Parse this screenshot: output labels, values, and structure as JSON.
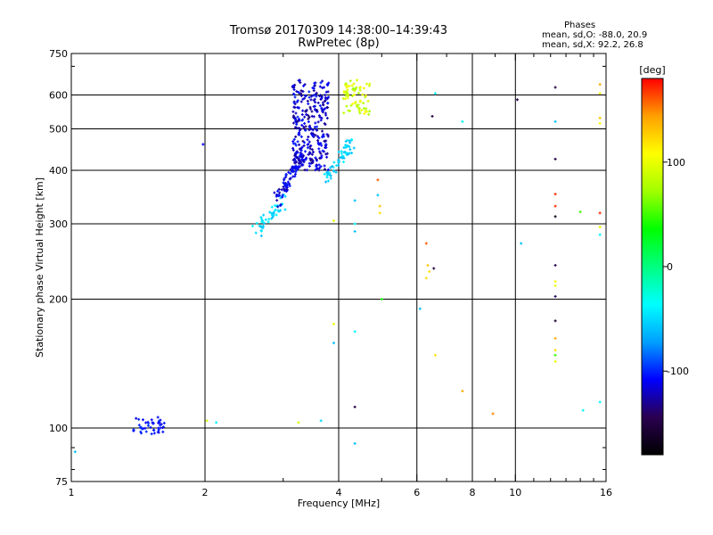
{
  "header": {
    "title_line1": "Tromsø 20170309 14:38:00–14:39:43",
    "title_line2": "RwPretec (8p)",
    "phases_title": "Phases",
    "phases_o": "mean, sd,O: -88.0, 20.9",
    "phases_x": "mean, sd,X:  92.2, 26.8"
  },
  "colors": {
    "background": "#ffffff",
    "axes": "#000000",
    "grid": "#000000"
  },
  "chart_data": {
    "type": "scatter",
    "xlabel": "Frequency [MHz]",
    "ylabel": "Stationary phase Virtual Height [km]",
    "x_scale": "log",
    "y_scale": "log",
    "xlim": [
      1,
      16
    ],
    "ylim": [
      75,
      750
    ],
    "x_ticks": [
      1,
      2,
      4,
      6,
      8,
      10,
      16
    ],
    "y_ticks": [
      75,
      100,
      200,
      300,
      400,
      500,
      600,
      750
    ],
    "grid": true,
    "x_grid": [
      2,
      4,
      6,
      8,
      10
    ],
    "y_grid": [
      100,
      200,
      300,
      400,
      500,
      600
    ],
    "colorbar": {
      "label": "[deg]",
      "min": -180,
      "max": 180,
      "ticks": [
        -100,
        0,
        100
      ],
      "stops": [
        "#000000",
        "#2a0050",
        "#0000ff",
        "#00a0ff",
        "#00ffff",
        "#00ff80",
        "#00ff00",
        "#a0ff00",
        "#ffff00",
        "#ffa000",
        "#ff0000"
      ]
    },
    "clusters": [
      {
        "name": "low",
        "freq": [
          1.38,
          1.62
        ],
        "height": [
          96,
          106
        ],
        "n": 45,
        "phase": [
          -115,
          -95
        ]
      },
      {
        "name": "ramp-low",
        "freq": [
          2.6,
          3.0
        ],
        "height": [
          285,
          340
        ],
        "n": 50,
        "phase": [
          -60,
          -35
        ]
      },
      {
        "name": "ramp-mid",
        "freq": [
          2.9,
          3.3
        ],
        "height": [
          340,
          440
        ],
        "n": 90,
        "phase": [
          -130,
          -100
        ]
      },
      {
        "name": "o-trace",
        "freq": [
          3.15,
          3.8
        ],
        "height": [
          400,
          650
        ],
        "n": 320,
        "phase": [
          -135,
          -100
        ]
      },
      {
        "name": "x-trace-low",
        "freq": [
          3.75,
          4.3
        ],
        "height": [
          380,
          470
        ],
        "n": 60,
        "phase": [
          -65,
          -40
        ]
      },
      {
        "name": "x-trace-upper",
        "freq": [
          4.1,
          4.7
        ],
        "height": [
          540,
          650
        ],
        "n": 70,
        "phase": [
          70,
          110
        ]
      }
    ],
    "points": [
      {
        "x": 1.02,
        "y": 88,
        "p": -60
      },
      {
        "x": 1.98,
        "y": 460,
        "p": -110
      },
      {
        "x": 2.02,
        "y": 104,
        "p": 90
      },
      {
        "x": 2.12,
        "y": 103,
        "p": -40
      },
      {
        "x": 3.25,
        "y": 103,
        "p": 90
      },
      {
        "x": 3.65,
        "y": 104,
        "p": -50
      },
      {
        "x": 3.9,
        "y": 305,
        "p": 100
      },
      {
        "x": 3.9,
        "y": 175,
        "p": 100
      },
      {
        "x": 3.9,
        "y": 158,
        "p": -60
      },
      {
        "x": 4.35,
        "y": 340,
        "p": -60
      },
      {
        "x": 4.35,
        "y": 300,
        "p": -40
      },
      {
        "x": 4.35,
        "y": 288,
        "p": -60
      },
      {
        "x": 4.35,
        "y": 168,
        "p": -40
      },
      {
        "x": 4.35,
        "y": 112,
        "p": -150
      },
      {
        "x": 4.35,
        "y": 92,
        "p": -60
      },
      {
        "x": 4.9,
        "y": 380,
        "p": 160
      },
      {
        "x": 4.9,
        "y": 350,
        "p": -60
      },
      {
        "x": 4.95,
        "y": 330,
        "p": 130
      },
      {
        "x": 4.95,
        "y": 318,
        "p": 120
      },
      {
        "x": 5.0,
        "y": 200,
        "p": 40
      },
      {
        "x": 6.1,
        "y": 190,
        "p": -60
      },
      {
        "x": 6.3,
        "y": 270,
        "p": 160
      },
      {
        "x": 6.35,
        "y": 240,
        "p": 130
      },
      {
        "x": 6.4,
        "y": 232,
        "p": 120
      },
      {
        "x": 6.3,
        "y": 224,
        "p": 120
      },
      {
        "x": 6.55,
        "y": 236,
        "p": -150
      },
      {
        "x": 6.6,
        "y": 148,
        "p": 120
      },
      {
        "x": 6.5,
        "y": 535,
        "p": -150
      },
      {
        "x": 6.6,
        "y": 605,
        "p": -40
      },
      {
        "x": 7.6,
        "y": 520,
        "p": -40
      },
      {
        "x": 7.6,
        "y": 122,
        "p": 140
      },
      {
        "x": 8.9,
        "y": 108,
        "p": 150
      },
      {
        "x": 10.1,
        "y": 585,
        "p": -150
      },
      {
        "x": 10.3,
        "y": 270,
        "p": -60
      },
      {
        "x": 12.3,
        "y": 625,
        "p": -150
      },
      {
        "x": 12.3,
        "y": 520,
        "p": -60
      },
      {
        "x": 12.3,
        "y": 425,
        "p": -150
      },
      {
        "x": 12.3,
        "y": 352,
        "p": 170
      },
      {
        "x": 12.3,
        "y": 330,
        "p": 170
      },
      {
        "x": 12.3,
        "y": 312,
        "p": -170
      },
      {
        "x": 12.3,
        "y": 240,
        "p": -150
      },
      {
        "x": 12.3,
        "y": 220,
        "p": 110
      },
      {
        "x": 12.3,
        "y": 215,
        "p": 100
      },
      {
        "x": 12.3,
        "y": 203,
        "p": -140
      },
      {
        "x": 12.3,
        "y": 178,
        "p": -160
      },
      {
        "x": 12.3,
        "y": 162,
        "p": 140
      },
      {
        "x": 12.3,
        "y": 152,
        "p": 120
      },
      {
        "x": 12.3,
        "y": 148,
        "p": 50
      },
      {
        "x": 12.3,
        "y": 143,
        "p": 100
      },
      {
        "x": 14.0,
        "y": 320,
        "p": 50
      },
      {
        "x": 14.2,
        "y": 110,
        "p": -40
      },
      {
        "x": 15.5,
        "y": 635,
        "p": 140
      },
      {
        "x": 15.5,
        "y": 605,
        "p": 110
      },
      {
        "x": 15.5,
        "y": 530,
        "p": 130
      },
      {
        "x": 15.5,
        "y": 515,
        "p": 110
      },
      {
        "x": 15.5,
        "y": 318,
        "p": 170
      },
      {
        "x": 15.5,
        "y": 295,
        "p": 100
      },
      {
        "x": 15.5,
        "y": 283,
        "p": -40
      },
      {
        "x": 15.5,
        "y": 115,
        "p": -40
      }
    ]
  }
}
